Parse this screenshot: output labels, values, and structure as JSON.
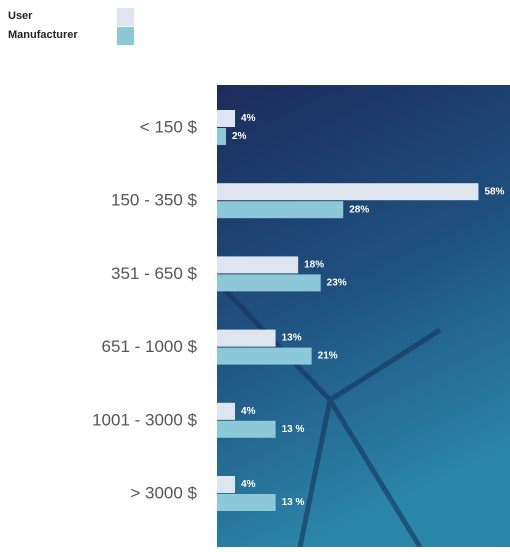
{
  "chart_data": {
    "type": "hbar",
    "categories": [
      "< 150 $",
      "150 - 350 $",
      "351 - 650 $",
      "651 - 1000 $",
      "1001 - 3000 $",
      "> 3000 $"
    ],
    "series": [
      {
        "name": "User",
        "color": "#dfe5ee",
        "values": [
          4,
          58,
          18,
          13,
          4,
          4
        ],
        "value_labels": [
          "4%",
          "58%",
          "18%",
          "13%",
          "4%",
          "4%"
        ]
      },
      {
        "name": "Manufacturer",
        "color": "#8cc8d8",
        "values": [
          2,
          28,
          23,
          21,
          13,
          13
        ],
        "value_labels": [
          "2%",
          "28%",
          "23%",
          "21%",
          "13 %",
          "13 %"
        ]
      }
    ],
    "xlim": [
      0,
      65
    ],
    "legend": "top-left"
  }
}
